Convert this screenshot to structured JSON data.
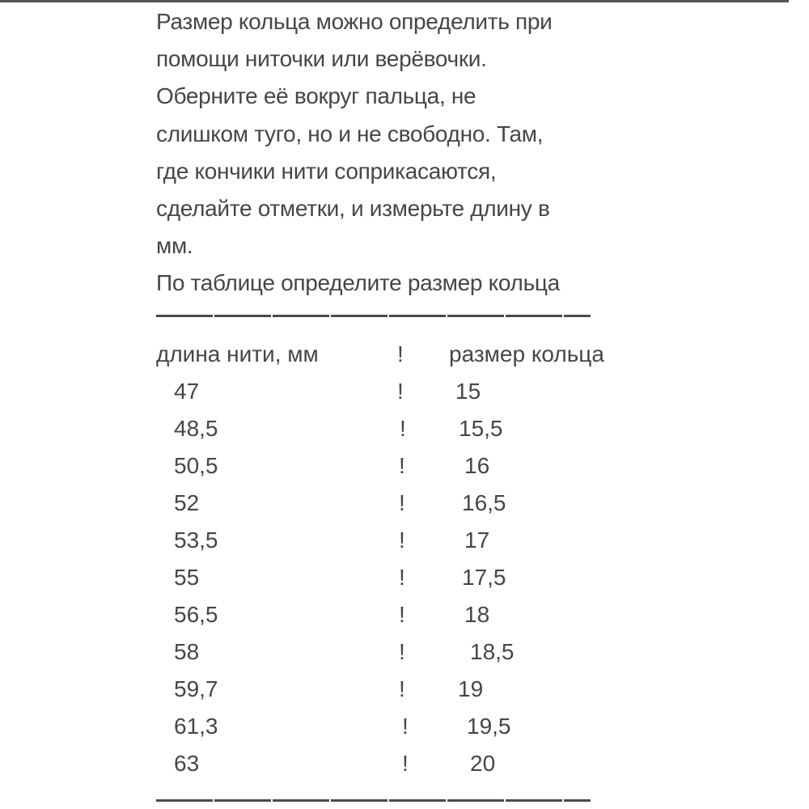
{
  "instructions": [
    "Размер кольца можно определить при",
    "помощи ниточки или верёвочки.",
    "Оберните её вокруг пальца, не",
    "слишком туго, но и не свободно. Там,",
    "где кончики нити соприкасаются,",
    "сделайте отметки, и измерьте длину в",
    "мм.",
    "По таблице определите размер кольца"
  ],
  "table": {
    "headers": [
      "длина нити, мм",
      "!",
      "размер кольца"
    ],
    "rows": [
      [
        "47",
        "!",
        "15"
      ],
      [
        "48,5",
        "!",
        "15,5"
      ],
      [
        "50,5",
        "!",
        "16"
      ],
      [
        "52",
        "!",
        "16,5"
      ],
      [
        "53,5",
        "!",
        "17"
      ],
      [
        "55",
        "!",
        "17,5"
      ],
      [
        "56,5",
        "!",
        "18"
      ],
      [
        "58",
        "!",
        "18,5"
      ],
      [
        "59,7",
        "!",
        "19"
      ],
      [
        "61,3",
        "!",
        "19,5"
      ],
      [
        "63",
        "!",
        "20"
      ]
    ]
  }
}
